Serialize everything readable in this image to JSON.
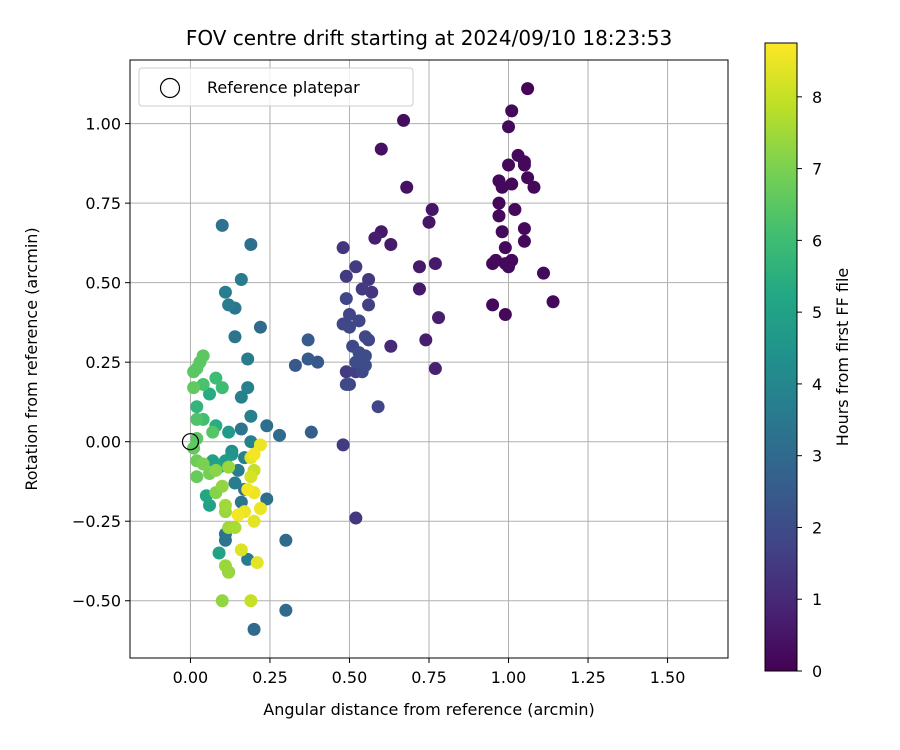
{
  "chart_data": {
    "type": "scatter",
    "title": "FOV centre drift starting at 2024/09/10 18:23:53",
    "xlabel": "Angular distance from reference (arcmin)",
    "ylabel": "Rotation from reference (arcmin)",
    "xlim": [
      -0.19,
      1.69
    ],
    "ylim": [
      -0.68,
      1.2
    ],
    "x_ticks": [
      0.0,
      0.25,
      0.5,
      0.75,
      1.0,
      1.25,
      1.5
    ],
    "x_tick_labels": [
      "0.00",
      "0.25",
      "0.50",
      "0.75",
      "1.00",
      "1.25",
      "1.50"
    ],
    "y_ticks": [
      -0.5,
      -0.25,
      0.0,
      0.25,
      0.5,
      0.75,
      1.0
    ],
    "y_tick_labels": [
      "−0.50",
      "−0.25",
      "0.00",
      "0.25",
      "0.50",
      "0.75",
      "1.00"
    ],
    "grid": true,
    "legend": {
      "placement": "top-left",
      "entries": [
        {
          "label": "Reference platepar",
          "marker": "open-circle"
        }
      ]
    },
    "reference_point": {
      "x": 0.0,
      "y": 0.0,
      "label": "Reference platepar"
    },
    "colorbar": {
      "label": "Hours from first FF file",
      "colormap": "viridis",
      "range": [
        0,
        8.75
      ],
      "ticks": [
        0,
        1,
        2,
        3,
        4,
        5,
        6,
        7,
        8
      ],
      "tick_labels": [
        "0",
        "1",
        "2",
        "3",
        "4",
        "5",
        "6",
        "7",
        "8"
      ]
    },
    "points": [
      {
        "x": 1.06,
        "y": 1.11,
        "h": 0.1
      },
      {
        "x": 1.01,
        "y": 1.04,
        "h": 0.2
      },
      {
        "x": 1.0,
        "y": 0.99,
        "h": 0.2
      },
      {
        "x": 1.03,
        "y": 0.9,
        "h": 0.2
      },
      {
        "x": 1.0,
        "y": 0.87,
        "h": 0.2
      },
      {
        "x": 1.05,
        "y": 0.87,
        "h": 0.2
      },
      {
        "x": 1.05,
        "y": 0.88,
        "h": 0.2
      },
      {
        "x": 0.97,
        "y": 0.82,
        "h": 0.2
      },
      {
        "x": 0.98,
        "y": 0.8,
        "h": 0.2
      },
      {
        "x": 1.01,
        "y": 0.81,
        "h": 0.2
      },
      {
        "x": 1.06,
        "y": 0.83,
        "h": 0.2
      },
      {
        "x": 1.08,
        "y": 0.8,
        "h": 0.2
      },
      {
        "x": 0.97,
        "y": 0.75,
        "h": 0.2
      },
      {
        "x": 1.02,
        "y": 0.73,
        "h": 0.2
      },
      {
        "x": 0.97,
        "y": 0.71,
        "h": 0.2
      },
      {
        "x": 1.05,
        "y": 0.67,
        "h": 0.2
      },
      {
        "x": 0.98,
        "y": 0.66,
        "h": 0.2
      },
      {
        "x": 1.05,
        "y": 0.63,
        "h": 0.2
      },
      {
        "x": 0.99,
        "y": 0.61,
        "h": 0.2
      },
      {
        "x": 0.95,
        "y": 0.56,
        "h": 0.2
      },
      {
        "x": 0.96,
        "y": 0.57,
        "h": 0.2
      },
      {
        "x": 0.99,
        "y": 0.56,
        "h": 0.2
      },
      {
        "x": 1.01,
        "y": 0.57,
        "h": 0.2
      },
      {
        "x": 1.0,
        "y": 0.55,
        "h": 0.2
      },
      {
        "x": 1.11,
        "y": 0.53,
        "h": 0.2
      },
      {
        "x": 0.95,
        "y": 0.43,
        "h": 0.2
      },
      {
        "x": 1.14,
        "y": 0.44,
        "h": 0.2
      },
      {
        "x": 0.99,
        "y": 0.4,
        "h": 0.2
      },
      {
        "x": 0.67,
        "y": 1.01,
        "h": 0.3
      },
      {
        "x": 0.6,
        "y": 0.92,
        "h": 0.4
      },
      {
        "x": 0.68,
        "y": 0.8,
        "h": 0.4
      },
      {
        "x": 0.76,
        "y": 0.73,
        "h": 0.5
      },
      {
        "x": 0.75,
        "y": 0.69,
        "h": 0.5
      },
      {
        "x": 0.6,
        "y": 0.66,
        "h": 0.6
      },
      {
        "x": 0.58,
        "y": 0.64,
        "h": 0.7
      },
      {
        "x": 0.63,
        "y": 0.62,
        "h": 0.6
      },
      {
        "x": 0.72,
        "y": 0.55,
        "h": 0.6
      },
      {
        "x": 0.77,
        "y": 0.56,
        "h": 0.6
      },
      {
        "x": 0.72,
        "y": 0.48,
        "h": 0.6
      },
      {
        "x": 0.78,
        "y": 0.39,
        "h": 0.7
      },
      {
        "x": 0.74,
        "y": 0.32,
        "h": 0.7
      },
      {
        "x": 0.77,
        "y": 0.23,
        "h": 0.8
      },
      {
        "x": 0.63,
        "y": 0.3,
        "h": 1.0
      },
      {
        "x": 0.48,
        "y": 0.61,
        "h": 1.3
      },
      {
        "x": 0.52,
        "y": 0.55,
        "h": 1.5
      },
      {
        "x": 0.49,
        "y": 0.52,
        "h": 1.5
      },
      {
        "x": 0.56,
        "y": 0.51,
        "h": 1.4
      },
      {
        "x": 0.54,
        "y": 0.48,
        "h": 1.5
      },
      {
        "x": 0.57,
        "y": 0.47,
        "h": 1.4
      },
      {
        "x": 0.49,
        "y": 0.45,
        "h": 1.8
      },
      {
        "x": 0.56,
        "y": 0.43,
        "h": 1.6
      },
      {
        "x": 0.5,
        "y": 0.4,
        "h": 1.8
      },
      {
        "x": 0.53,
        "y": 0.38,
        "h": 1.8
      },
      {
        "x": 0.48,
        "y": 0.37,
        "h": 1.8
      },
      {
        "x": 0.5,
        "y": 0.36,
        "h": 1.9
      },
      {
        "x": 0.55,
        "y": 0.33,
        "h": 1.9
      },
      {
        "x": 0.56,
        "y": 0.32,
        "h": 1.8
      },
      {
        "x": 0.51,
        "y": 0.3,
        "h": 1.9
      },
      {
        "x": 0.53,
        "y": 0.28,
        "h": 2.0
      },
      {
        "x": 0.55,
        "y": 0.27,
        "h": 2.0
      },
      {
        "x": 0.52,
        "y": 0.25,
        "h": 2.0
      },
      {
        "x": 0.55,
        "y": 0.24,
        "h": 2.0
      },
      {
        "x": 0.54,
        "y": 0.22,
        "h": 1.9
      },
      {
        "x": 0.49,
        "y": 0.22,
        "h": 1.5
      },
      {
        "x": 0.52,
        "y": 0.22,
        "h": 1.6
      },
      {
        "x": 0.5,
        "y": 0.18,
        "h": 1.8
      },
      {
        "x": 0.49,
        "y": 0.18,
        "h": 1.9
      },
      {
        "x": 0.59,
        "y": 0.11,
        "h": 1.8
      },
      {
        "x": 0.48,
        "y": -0.01,
        "h": 1.5
      },
      {
        "x": 0.52,
        "y": -0.24,
        "h": 1.4
      },
      {
        "x": 0.37,
        "y": 0.32,
        "h": 2.5
      },
      {
        "x": 0.37,
        "y": 0.26,
        "h": 2.5
      },
      {
        "x": 0.33,
        "y": 0.24,
        "h": 2.4
      },
      {
        "x": 0.4,
        "y": 0.25,
        "h": 2.4
      },
      {
        "x": 0.38,
        "y": 0.03,
        "h": 2.6
      },
      {
        "x": 0.1,
        "y": 0.68,
        "h": 3.3
      },
      {
        "x": 0.19,
        "y": 0.62,
        "h": 3.2
      },
      {
        "x": 0.16,
        "y": 0.51,
        "h": 3.6
      },
      {
        "x": 0.11,
        "y": 0.47,
        "h": 3.7
      },
      {
        "x": 0.12,
        "y": 0.43,
        "h": 3.6
      },
      {
        "x": 0.14,
        "y": 0.42,
        "h": 3.4
      },
      {
        "x": 0.22,
        "y": 0.36,
        "h": 3.0
      },
      {
        "x": 0.14,
        "y": 0.33,
        "h": 3.4
      },
      {
        "x": 0.18,
        "y": 0.26,
        "h": 3.6
      },
      {
        "x": 0.18,
        "y": 0.17,
        "h": 3.8
      },
      {
        "x": 0.16,
        "y": 0.14,
        "h": 3.8
      },
      {
        "x": 0.19,
        "y": 0.08,
        "h": 3.8
      },
      {
        "x": 0.24,
        "y": 0.05,
        "h": 3.2
      },
      {
        "x": 0.28,
        "y": 0.02,
        "h": 3.0
      },
      {
        "x": 0.16,
        "y": 0.04,
        "h": 3.4
      },
      {
        "x": 0.19,
        "y": 0.0,
        "h": 3.8
      },
      {
        "x": 0.13,
        "y": -0.03,
        "h": 4.2
      },
      {
        "x": 0.17,
        "y": -0.05,
        "h": 3.8
      },
      {
        "x": 0.15,
        "y": -0.09,
        "h": 3.6
      },
      {
        "x": 0.17,
        "y": -0.15,
        "h": 3.2
      },
      {
        "x": 0.24,
        "y": -0.18,
        "h": 3.2
      },
      {
        "x": 0.16,
        "y": -0.19,
        "h": 3.4
      },
      {
        "x": 0.14,
        "y": -0.13,
        "h": 3.6
      },
      {
        "x": 0.11,
        "y": -0.29,
        "h": 3.3
      },
      {
        "x": 0.11,
        "y": -0.31,
        "h": 3.4
      },
      {
        "x": 0.3,
        "y": -0.31,
        "h": 3.0
      },
      {
        "x": 0.18,
        "y": -0.37,
        "h": 3.6
      },
      {
        "x": 0.12,
        "y": -0.41,
        "h": 3.4
      },
      {
        "x": 0.3,
        "y": -0.53,
        "h": 3.0
      },
      {
        "x": 0.2,
        "y": -0.59,
        "h": 3.0
      },
      {
        "x": 0.13,
        "y": -0.04,
        "h": 4.5
      },
      {
        "x": 0.12,
        "y": 0.03,
        "h": 4.7
      },
      {
        "x": 0.11,
        "y": -0.06,
        "h": 4.8
      },
      {
        "x": 0.07,
        "y": -0.06,
        "h": 4.9
      },
      {
        "x": 0.09,
        "y": -0.08,
        "h": 5.0
      },
      {
        "x": 0.05,
        "y": -0.17,
        "h": 5.2
      },
      {
        "x": 0.06,
        "y": -0.2,
        "h": 5.0
      },
      {
        "x": 0.09,
        "y": -0.35,
        "h": 5.0
      },
      {
        "x": 0.08,
        "y": 0.05,
        "h": 5.4
      },
      {
        "x": 0.06,
        "y": 0.15,
        "h": 5.4
      },
      {
        "x": 0.02,
        "y": 0.11,
        "h": 5.7
      },
      {
        "x": 0.1,
        "y": 0.17,
        "h": 6.0
      },
      {
        "x": 0.08,
        "y": 0.2,
        "h": 6.0
      },
      {
        "x": 0.04,
        "y": 0.18,
        "h": 6.2
      },
      {
        "x": 0.01,
        "y": 0.22,
        "h": 6.5
      },
      {
        "x": 0.02,
        "y": 0.23,
        "h": 6.5
      },
      {
        "x": 0.03,
        "y": 0.25,
        "h": 6.5
      },
      {
        "x": 0.04,
        "y": 0.27,
        "h": 6.5
      },
      {
        "x": 0.01,
        "y": 0.17,
        "h": 6.6
      },
      {
        "x": 0.02,
        "y": 0.07,
        "h": 6.3
      },
      {
        "x": 0.04,
        "y": 0.07,
        "h": 6.1
      },
      {
        "x": 0.07,
        "y": 0.03,
        "h": 6.4
      },
      {
        "x": 0.02,
        "y": 0.01,
        "h": 6.5
      },
      {
        "x": 0.01,
        "y": -0.02,
        "h": 6.6
      },
      {
        "x": 0.02,
        "y": -0.06,
        "h": 6.8
      },
      {
        "x": 0.02,
        "y": -0.11,
        "h": 6.7
      },
      {
        "x": 0.04,
        "y": -0.07,
        "h": 7.0
      },
      {
        "x": 0.06,
        "y": -0.1,
        "h": 6.9
      },
      {
        "x": 0.08,
        "y": -0.09,
        "h": 7.2
      },
      {
        "x": 0.08,
        "y": -0.16,
        "h": 7.1
      },
      {
        "x": 0.1,
        "y": -0.14,
        "h": 7.3
      },
      {
        "x": 0.11,
        "y": -0.2,
        "h": 7.5
      },
      {
        "x": 0.12,
        "y": -0.08,
        "h": 7.4
      },
      {
        "x": 0.11,
        "y": -0.22,
        "h": 7.4
      },
      {
        "x": 0.12,
        "y": -0.27,
        "h": 7.5
      },
      {
        "x": 0.14,
        "y": -0.27,
        "h": 7.6
      },
      {
        "x": 0.11,
        "y": -0.39,
        "h": 7.4
      },
      {
        "x": 0.12,
        "y": -0.41,
        "h": 7.4
      },
      {
        "x": 0.1,
        "y": -0.5,
        "h": 7.3
      },
      {
        "x": 0.19,
        "y": -0.5,
        "h": 8.0
      },
      {
        "x": 0.21,
        "y": -0.38,
        "h": 8.4
      },
      {
        "x": 0.16,
        "y": -0.34,
        "h": 8.3
      },
      {
        "x": 0.17,
        "y": -0.22,
        "h": 8.5
      },
      {
        "x": 0.2,
        "y": -0.25,
        "h": 8.4
      },
      {
        "x": 0.22,
        "y": -0.21,
        "h": 8.5
      },
      {
        "x": 0.18,
        "y": -0.15,
        "h": 8.6
      },
      {
        "x": 0.2,
        "y": -0.16,
        "h": 8.5
      },
      {
        "x": 0.19,
        "y": -0.11,
        "h": 8.2
      },
      {
        "x": 0.2,
        "y": -0.09,
        "h": 8.0
      },
      {
        "x": 0.19,
        "y": -0.05,
        "h": 8.4
      },
      {
        "x": 0.2,
        "y": -0.04,
        "h": 8.6
      },
      {
        "x": 0.22,
        "y": -0.01,
        "h": 8.5
      },
      {
        "x": 0.15,
        "y": -0.23,
        "h": 8.6
      }
    ]
  }
}
